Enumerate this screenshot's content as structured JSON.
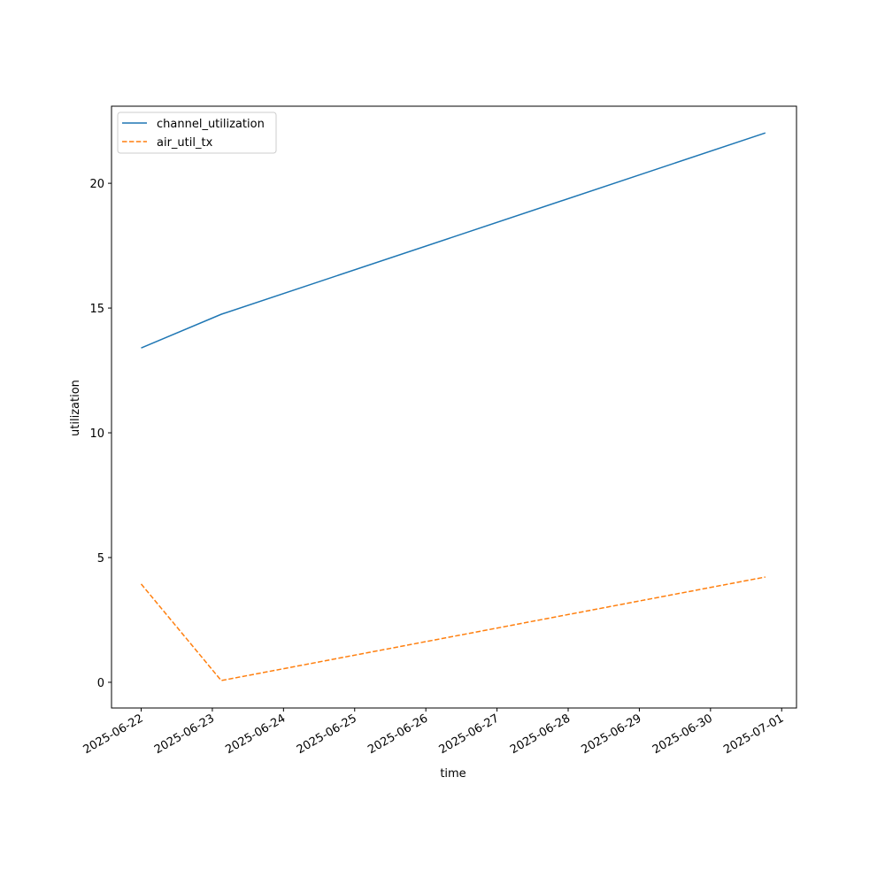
{
  "chart_data": {
    "type": "line",
    "xlabel": "time",
    "ylabel": "utilization",
    "x": [
      "2025-06-22",
      "2025-06-23T03:00",
      "2025-06-30T18:30"
    ],
    "series": [
      {
        "name": "channel_utilization",
        "color": "#1f77b4",
        "linestyle": "solid",
        "values": [
          13.4,
          14.75,
          22.02
        ]
      },
      {
        "name": "air_util_tx",
        "color": "#ff7f0e",
        "linestyle": "dashed",
        "values": [
          3.94,
          0.07,
          4.22
        ]
      }
    ],
    "xlim": [
      "2025-06-21T14:00",
      "2025-07-01T05:00"
    ],
    "xticks": [
      "2025-06-22",
      "2025-06-23",
      "2025-06-24",
      "2025-06-25",
      "2025-06-26",
      "2025-06-27",
      "2025-06-28",
      "2025-06-29",
      "2025-06-30",
      "2025-07-01"
    ],
    "ylim": [
      -1.03,
      23.09
    ],
    "yticks": [
      0,
      5,
      10,
      15,
      20
    ],
    "grid": false,
    "legend": "upper left"
  }
}
